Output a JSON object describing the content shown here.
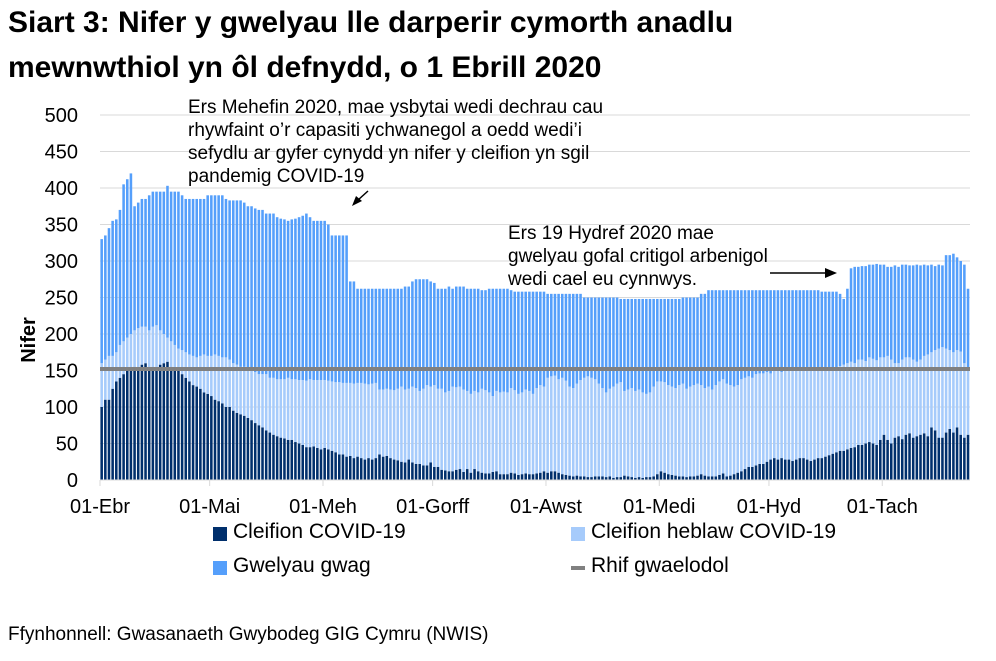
{
  "title_line1": "Siart 3: Nifer y gwelyau lle darperir cymorth anadlu",
  "title_line2": "mewnwthiol yn ôl defnydd, o 1 Ebrill 2020",
  "annotations": {
    "a1": [
      "Ers Mehefin 2020, mae ysbytai wedi dechrau cau",
      "rhywfaint o’r capasiti ychwanegol a oedd wedi’i",
      "sefydlu ar gyfer cynydd yn nifer y cleifion yn sgil",
      "pandemig COVID-19"
    ],
    "a2": [
      "Ers 19 Hydref 2020 mae",
      "gwelyau gofal critigol arbenigol",
      "wedi cael eu cynnwys."
    ]
  },
  "source": "Ffynhonnell: Gwasanaeth Gwybodeg GIG Cymru (NWIS)",
  "colors": {
    "covid": "#002f6c",
    "non_covid": "#a6cbfb",
    "empty": "#559ffb",
    "baseline": "#808080",
    "grid": "#d9d9d9"
  },
  "chart_data": {
    "type": "bar",
    "stacked": true,
    "ylabel": "Nifer",
    "xlabel": "",
    "ylim": [
      0,
      500
    ],
    "y_ticks": [
      0,
      50,
      100,
      150,
      200,
      250,
      300,
      350,
      400,
      450,
      500
    ],
    "grid": true,
    "legend_position": "bottom",
    "x_ticks": [
      "01-Ebr",
      "01-Mai",
      "01-Meh",
      "01-Gorff",
      "01-Awst",
      "01-Medi",
      "01-Hyd",
      "01-Tach"
    ],
    "month_lengths": {
      "Ebr": 30,
      "Mai": 31,
      "Meh": 30,
      "Gorff": 31,
      "Awst": 31,
      "Medi": 30,
      "Hyd": 31,
      "Tach": 24
    },
    "series": [
      {
        "name": "Cleifion COVID-19",
        "color": "#002f6c",
        "values": [
          100,
          110,
          110,
          125,
          135,
          140,
          145,
          150,
          152,
          155,
          155,
          158,
          160,
          155,
          155,
          152,
          158,
          160,
          162,
          155,
          150,
          150,
          145,
          140,
          135,
          130,
          128,
          125,
          120,
          118,
          115,
          110,
          108,
          105,
          100,
          100,
          95,
          92,
          90,
          88,
          85,
          82,
          78,
          75,
          72,
          68,
          65,
          62,
          60,
          58,
          57,
          55,
          55,
          52,
          50,
          48,
          45,
          45,
          46,
          44,
          42,
          44,
          42,
          40,
          38,
          35,
          35,
          32,
          33,
          30,
          32,
          30,
          28,
          30,
          28,
          30,
          35,
          32,
          33,
          30,
          28,
          27,
          25,
          24,
          28,
          24,
          22,
          22,
          20,
          20,
          24,
          18,
          18,
          14,
          13,
          12,
          12,
          14,
          15,
          11,
          15,
          10,
          15,
          12,
          10,
          9,
          9,
          11,
          12,
          8,
          8,
          8,
          10,
          9,
          7,
          8,
          9,
          8,
          8,
          9,
          10,
          12,
          10,
          12,
          12,
          10,
          8,
          7,
          6,
          5,
          6,
          5,
          5,
          4,
          4,
          5,
          5,
          5,
          4,
          5,
          3,
          4,
          4,
          6,
          5,
          4,
          3,
          4,
          3,
          4,
          4,
          5,
          8,
          12,
          10,
          8,
          7,
          6,
          5,
          5,
          4,
          5,
          5,
          6,
          8,
          6,
          5,
          5,
          5,
          7,
          9,
          5,
          6,
          8,
          10,
          12,
          15,
          18,
          18,
          20,
          22,
          22,
          25,
          28,
          30,
          28,
          30,
          28,
          28,
          26,
          28,
          30,
          30,
          28,
          26,
          28,
          30,
          30,
          32,
          34,
          36,
          38,
          40,
          40,
          42,
          44,
          45,
          48,
          48,
          50,
          52,
          50,
          48,
          55,
          62,
          55,
          50,
          58,
          60,
          56,
          62,
          64,
          58,
          60,
          62,
          64,
          60,
          72,
          68,
          58,
          58,
          65,
          70,
          65,
          72,
          62,
          58,
          62
        ]
      },
      {
        "name": "Cleifion heblaw COVID-19",
        "color": "#a6cbfb",
        "values": [
          60,
          55,
          60,
          45,
          40,
          45,
          45,
          45,
          48,
          50,
          53,
          52,
          50,
          50,
          55,
          60,
          47,
          40,
          33,
          35,
          35,
          30,
          33,
          35,
          37,
          40,
          40,
          45,
          52,
          52,
          55,
          62,
          62,
          63,
          68,
          65,
          65,
          66,
          65,
          67,
          65,
          68,
          70,
          70,
          73,
          77,
          75,
          78,
          78,
          80,
          81,
          85,
          83,
          86,
          87,
          89,
          91,
          93,
          91,
          93,
          95,
          93,
          94,
          95,
          96,
          99,
          98,
          101,
          100,
          102,
          101,
          103,
          104,
          101,
          104,
          103,
          89,
          92,
          92,
          94,
          95,
          98,
          103,
          100,
          97,
          104,
          104,
          100,
          105,
          110,
          104,
          112,
          107,
          111,
          107,
          110,
          116,
          113,
          113,
          113,
          107,
          108,
          107,
          108,
          115,
          114,
          111,
          104,
          110,
          112,
          113,
          112,
          116,
          114,
          111,
          112,
          115,
          114,
          110,
          117,
          120,
          116,
          130,
          130,
          131,
          128,
          132,
          129,
          122,
          121,
          126,
          132,
          135,
          138,
          136,
          133,
          127,
          121,
          116,
          120,
          125,
          128,
          130,
          116,
          119,
          122,
          119,
          120,
          117,
          114,
          116,
          123,
          127,
          123,
          124,
          122,
          121,
          120,
          125,
          127,
          121,
          123,
          125,
          126,
          122,
          120,
          123,
          119,
          125,
          128,
          129,
          127,
          124,
          120,
          120,
          126,
          125,
          124,
          122,
          125,
          124,
          124,
          123,
          118,
          120,
          122,
          118,
          122,
          122,
          124,
          122,
          120,
          120,
          122,
          126,
          124,
          120,
          120,
          118,
          118,
          114,
          114,
          116,
          118,
          118,
          118,
          115,
          117,
          117,
          113,
          116,
          116,
          116,
          113,
          106,
          115,
          115,
          102,
          100,
          109,
          106,
          104,
          107,
          102,
          103,
          106,
          112,
          103,
          110,
          122,
          124,
          115,
          108,
          110,
          106,
          114,
          102,
          90
        ]
      },
      {
        "name": "Gwelyau gwag",
        "color": "#559ffb",
        "values": [
          170,
          170,
          175,
          185,
          182,
          185,
          215,
          217,
          220,
          170,
          172,
          175,
          175,
          185,
          185,
          183,
          190,
          195,
          208,
          205,
          210,
          215,
          212,
          210,
          213,
          215,
          217,
          215,
          213,
          220,
          220,
          218,
          220,
          222,
          217,
          218,
          223,
          225,
          228,
          225,
          225,
          225,
          224,
          225,
          225,
          220,
          225,
          225,
          222,
          220,
          219,
          215,
          219,
          220,
          223,
          225,
          229,
          222,
          218,
          218,
          218,
          218,
          214,
          200,
          201,
          201,
          202,
          202,
          139,
          140,
          129,
          129,
          130,
          131,
          130,
          129,
          138,
          138,
          137,
          138,
          139,
          137,
          134,
          141,
          140,
          144,
          149,
          153,
          150,
          145,
          144,
          140,
          137,
          137,
          142,
          143,
          134,
          138,
          137,
          141,
          140,
          144,
          140,
          142,
          135,
          137,
          142,
          147,
          140,
          142,
          141,
          142,
          134,
          135,
          140,
          138,
          134,
          136,
          140,
          132,
          128,
          130,
          115,
          113,
          112,
          117,
          115,
          119,
          127,
          129,
          123,
          118,
          110,
          108,
          110,
          112,
          118,
          124,
          130,
          125,
          122,
          118,
          114,
          126,
          124,
          122,
          126,
          124,
          128,
          130,
          128,
          120,
          113,
          113,
          114,
          118,
          120,
          122,
          118,
          118,
          125,
          122,
          120,
          118,
          125,
          129,
          132,
          136,
          130,
          125,
          122,
          128,
          130,
          132,
          130,
          122,
          120,
          118,
          120,
          115,
          114,
          114,
          112,
          114,
          110,
          110,
          112,
          110,
          110,
          110,
          110,
          110,
          110,
          110,
          108,
          108,
          110,
          108,
          108,
          106,
          108,
          106,
          99,
          90,
          102,
          128,
          132,
          127,
          128,
          130,
          127,
          129,
          132,
          127,
          127,
          122,
          127,
          134,
          132,
          130,
          127,
          126,
          129,
          133,
          129,
          125,
          122,
          120,
          115,
          115,
          112,
          128,
          130,
          135,
          127,
          124,
          135,
          110
        ]
      },
      {
        "name": "Rhif gwaelodol",
        "type": "line",
        "color": "#808080",
        "value": 152
      }
    ]
  }
}
